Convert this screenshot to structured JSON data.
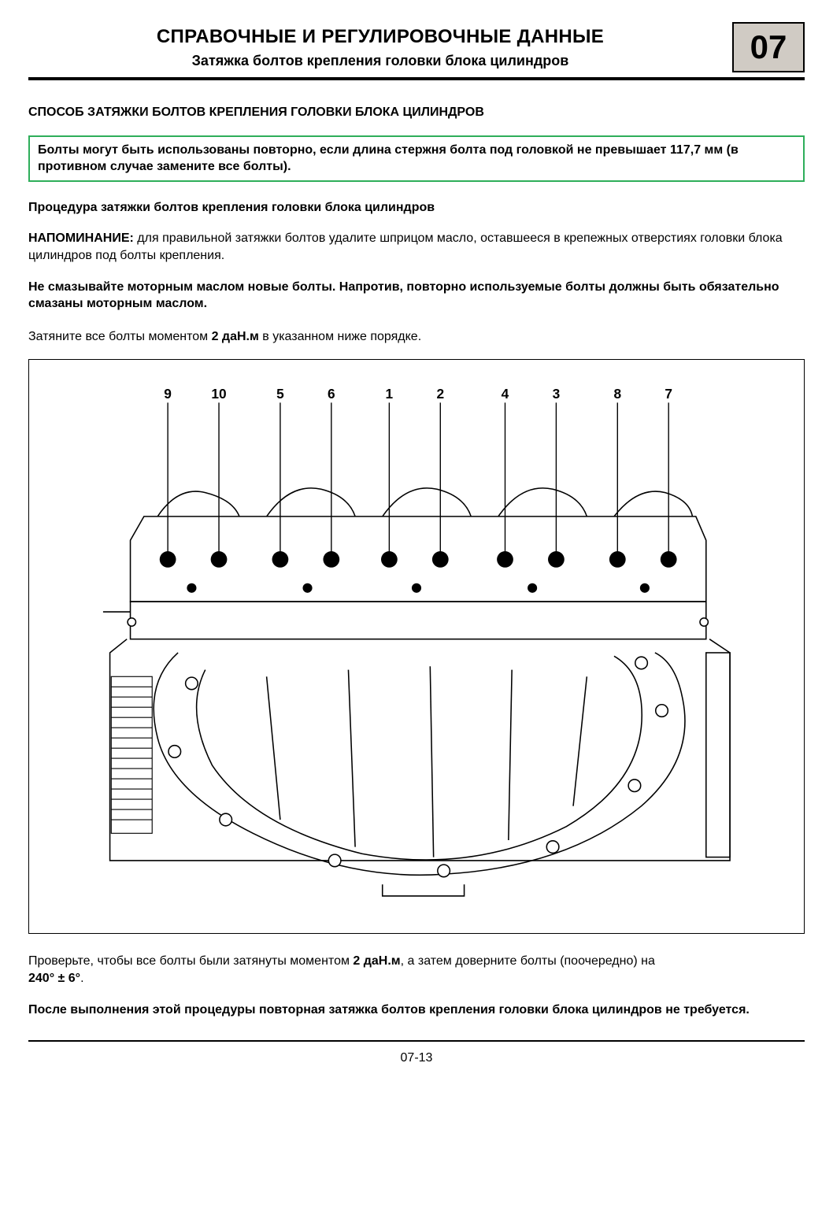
{
  "header": {
    "title": "СПРАВОЧНЫЕ И РЕГУЛИРОВОЧНЫЕ ДАННЫЕ",
    "subtitle": "Затяжка болтов крепления головки блока цилиндров",
    "section_number": "07"
  },
  "content": {
    "section_heading": "СПОСОБ ЗАТЯЖКИ БОЛТОВ КРЕПЛЕНИЯ ГОЛОВКИ БЛОКА ЦИЛИНДРОВ",
    "callout": {
      "text": "Болты могут быть использованы повторно, если длина стержня болта под головкой не превышает 117,7 мм (в противном случае замените все болты).",
      "border_color": "#2eae5a"
    },
    "sub_heading": "Процедура затяжки болтов крепления головки блока цилиндров",
    "reminder_label": "НАПОМИНАНИЕ:",
    "reminder_text": " для правильной затяжки болтов удалите шприцом масло, оставшееся в крепежных отверстиях головки блока цилиндров под болты крепления.",
    "warning": "Не смазывайте моторным маслом новые болты. Напротив, повторно используемые болты должны быть обязательно смазаны моторным маслом.",
    "step1_pre": "Затяните все болты моментом ",
    "step1_bold": "2 даН.м",
    "step1_post": " в указанном ниже порядке.",
    "figure": {
      "bolt_order": [
        "9",
        "10",
        "5",
        "6",
        "1",
        "2",
        "4",
        "3",
        "8",
        "7"
      ],
      "bolt_x_positions": [
        155,
        230,
        320,
        395,
        480,
        555,
        650,
        725,
        815,
        890
      ]
    },
    "step2_pre": "Проверьте, чтобы все болты были затянуты моментом ",
    "step2_bold1": "2 даН.м",
    "step2_mid": ", а затем доверните болты (поочередно) на ",
    "step2_bold2": "240° ± 6°",
    "step2_post": ".",
    "final": "После выполнения этой процедуры повторная затяжка болтов крепления головки блока цилиндров не требуется."
  },
  "footer": {
    "page_number": "07-13"
  }
}
